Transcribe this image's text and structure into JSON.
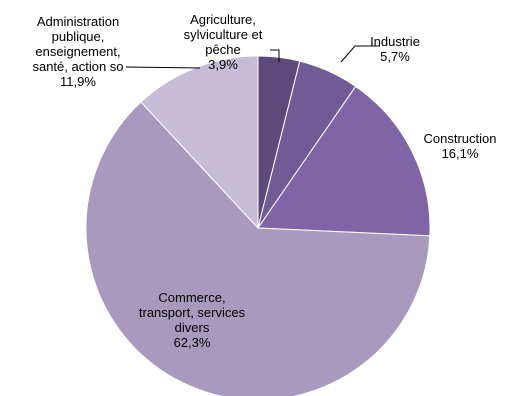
{
  "chart_data": {
    "type": "pie",
    "categories": [
      "Agriculture, sylviculture et pêche",
      "Industrie",
      "Construction",
      "Commerce, transport, services divers",
      "Administration publique, enseignement, santé, action so"
    ],
    "values": [
      3.9,
      5.7,
      16.1,
      62.3,
      11.9
    ],
    "value_labels": [
      "3,9%",
      "5,7%",
      "16,1%",
      "62,3%",
      "11,9%"
    ],
    "label_lines": [
      [
        "Agriculture,",
        "sylviculture et",
        "pêche"
      ],
      [
        "Industrie"
      ],
      [
        "Construction"
      ],
      [
        "Commerce,",
        "transport, services",
        "divers"
      ],
      [
        "Administration",
        "publique,",
        "enseignement,",
        "santé, action so"
      ]
    ],
    "colors": [
      "#5e4a7a",
      "#715b94",
      "#7f65a6",
      "#a89abf",
      "#c6bcd7"
    ],
    "start_angle_deg": 0,
    "direction": "clockwise",
    "legend": "none",
    "title": ""
  }
}
